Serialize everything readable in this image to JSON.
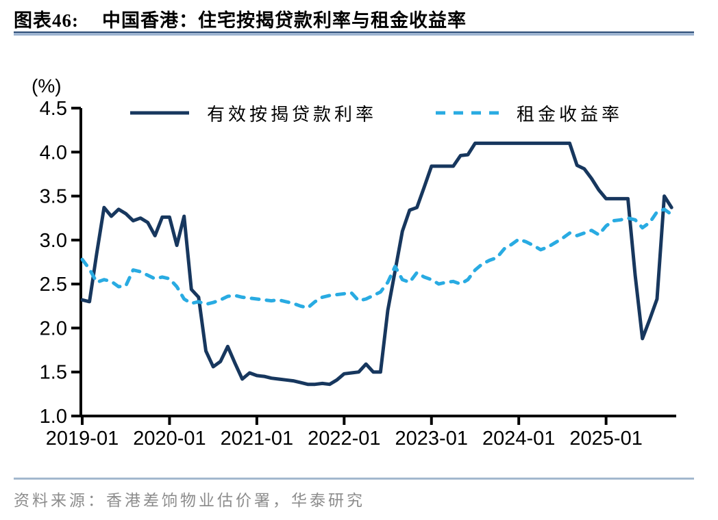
{
  "chart": {
    "figure_label": "图表46:",
    "title": "中国香港：住宅按揭贷款利率与租金收益率",
    "unit_label": "(%)",
    "source": "资料来源：香港差饷物业估价署，华泰研究",
    "type": "line",
    "x_start": "2019-01",
    "x_end": "2025-10",
    "x_tick_labels": [
      "2019-01",
      "2020-01",
      "2021-01",
      "2022-01",
      "2023-01",
      "2024-01",
      "2025-01"
    ],
    "y_tick_labels": [
      "4.5",
      "4.0",
      "3.5",
      "3.0",
      "2.5",
      "2.0",
      "1.5",
      "1.0"
    ],
    "ylim": [
      1.0,
      4.5
    ],
    "grid": false,
    "legend_position": "top",
    "axis_color": "#000000",
    "series": [
      {
        "name": "有效按揭贷款利率",
        "style": "solid",
        "color": "#17375E",
        "values": [
          2.32,
          2.3,
          2.85,
          3.37,
          3.27,
          3.35,
          3.3,
          3.22,
          3.25,
          3.2,
          3.05,
          3.26,
          3.26,
          2.94,
          3.27,
          2.44,
          2.35,
          1.74,
          1.56,
          1.62,
          1.79,
          1.6,
          1.42,
          1.49,
          1.46,
          1.45,
          1.43,
          1.42,
          1.41,
          1.4,
          1.38,
          1.36,
          1.36,
          1.37,
          1.36,
          1.41,
          1.48,
          1.49,
          1.5,
          1.59,
          1.5,
          1.5,
          2.2,
          2.65,
          3.1,
          3.34,
          3.37,
          3.6,
          3.84,
          3.84,
          3.84,
          3.84,
          3.96,
          3.97,
          4.1,
          4.1,
          4.1,
          4.1,
          4.1,
          4.1,
          4.1,
          4.1,
          4.1,
          4.1,
          4.1,
          4.1,
          4.1,
          4.1,
          3.85,
          3.81,
          3.7,
          3.57,
          3.47,
          3.47,
          3.47,
          3.47,
          2.6,
          1.88,
          2.1,
          2.33,
          3.5,
          3.37
        ]
      },
      {
        "name": "租金收益率",
        "style": "dashed",
        "color": "#29ABE2",
        "values": [
          2.78,
          2.67,
          2.52,
          2.55,
          2.53,
          2.47,
          2.48,
          2.66,
          2.64,
          2.6,
          2.56,
          2.58,
          2.56,
          2.47,
          2.33,
          2.28,
          2.3,
          2.27,
          2.29,
          2.32,
          2.36,
          2.37,
          2.35,
          2.34,
          2.33,
          2.32,
          2.31,
          2.32,
          2.3,
          2.28,
          2.25,
          2.23,
          2.3,
          2.35,
          2.37,
          2.38,
          2.39,
          2.4,
          2.31,
          2.33,
          2.37,
          2.41,
          2.52,
          2.7,
          2.55,
          2.52,
          2.63,
          2.58,
          2.55,
          2.5,
          2.52,
          2.53,
          2.5,
          2.55,
          2.66,
          2.73,
          2.77,
          2.8,
          2.9,
          2.95,
          3.01,
          2.98,
          2.94,
          2.89,
          2.92,
          2.97,
          3.02,
          3.08,
          3.05,
          3.08,
          3.11,
          3.06,
          3.16,
          3.22,
          3.23,
          3.25,
          3.23,
          3.14,
          3.2,
          3.32,
          3.35,
          3.29
        ]
      }
    ]
  }
}
